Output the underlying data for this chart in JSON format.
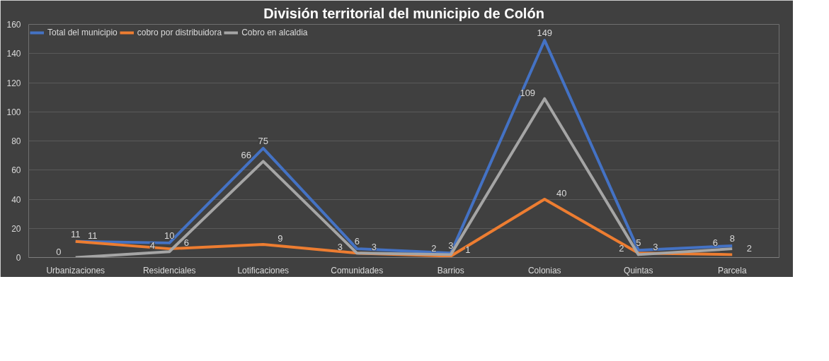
{
  "chart_data": {
    "type": "line",
    "title": "División territorial del municipio de Colón",
    "categories": [
      "Urbanizaciones",
      "Residenciales",
      "Lotificaciones",
      "Comunidades",
      "Barrios",
      "Colonias",
      "Quintas",
      "Parcela"
    ],
    "series": [
      {
        "name": "Total del municipio",
        "color": "#4472c4",
        "values": [
          11,
          10,
          75,
          6,
          3,
          149,
          5,
          8
        ]
      },
      {
        "name": "cobro por distribuidora",
        "color": "#ed7d31",
        "values": [
          11,
          6,
          9,
          3,
          1,
          40,
          3,
          2
        ]
      },
      {
        "name": "Cobro en alcaldia",
        "color": "#a5a5a5",
        "values": [
          0,
          4,
          66,
          3,
          2,
          109,
          2,
          6
        ]
      }
    ],
    "ylim": [
      0,
      160
    ],
    "yticks": [
      0,
      20,
      40,
      60,
      80,
      100,
      120,
      140,
      160
    ],
    "grid": "y",
    "legend": "top left",
    "data_labels": true,
    "marker": "none",
    "line_style": "solid"
  }
}
